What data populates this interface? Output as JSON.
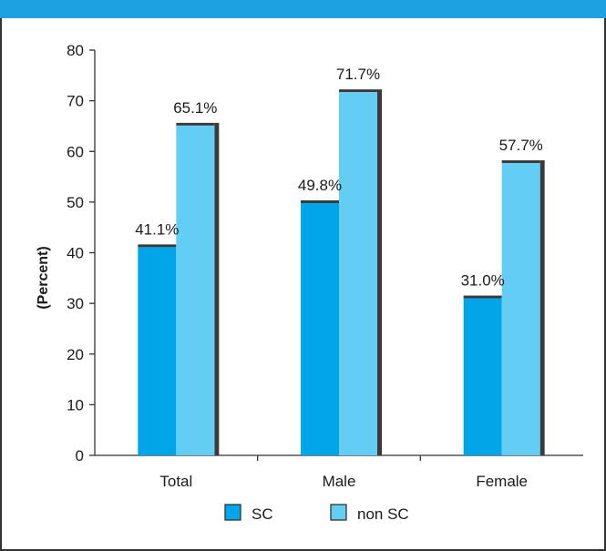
{
  "header": {
    "title": ""
  },
  "colors": {
    "sc": "#00a6e8",
    "non_sc": "#63cdf3",
    "shadow": "#3a3a3a",
    "band": "#1ea1e0"
  },
  "chart_data": {
    "type": "bar",
    "categories": [
      "Total",
      "Male",
      "Female"
    ],
    "series": [
      {
        "name": "SC",
        "values": [
          41.1,
          49.8,
          31.0
        ],
        "labels": [
          "41.1%",
          "49.8%",
          "31.0%"
        ]
      },
      {
        "name": "non SC",
        "values": [
          65.1,
          71.7,
          57.7
        ],
        "labels": [
          "65.1%",
          "71.7%",
          "57.7%"
        ]
      }
    ],
    "ylabel": "(Percent)",
    "xlabel": "",
    "ylim": [
      0,
      80
    ],
    "yticks": [
      "0",
      "10",
      "20",
      "30",
      "40",
      "50",
      "60",
      "70",
      "80"
    ],
    "legend": "bottom",
    "grid": false
  }
}
